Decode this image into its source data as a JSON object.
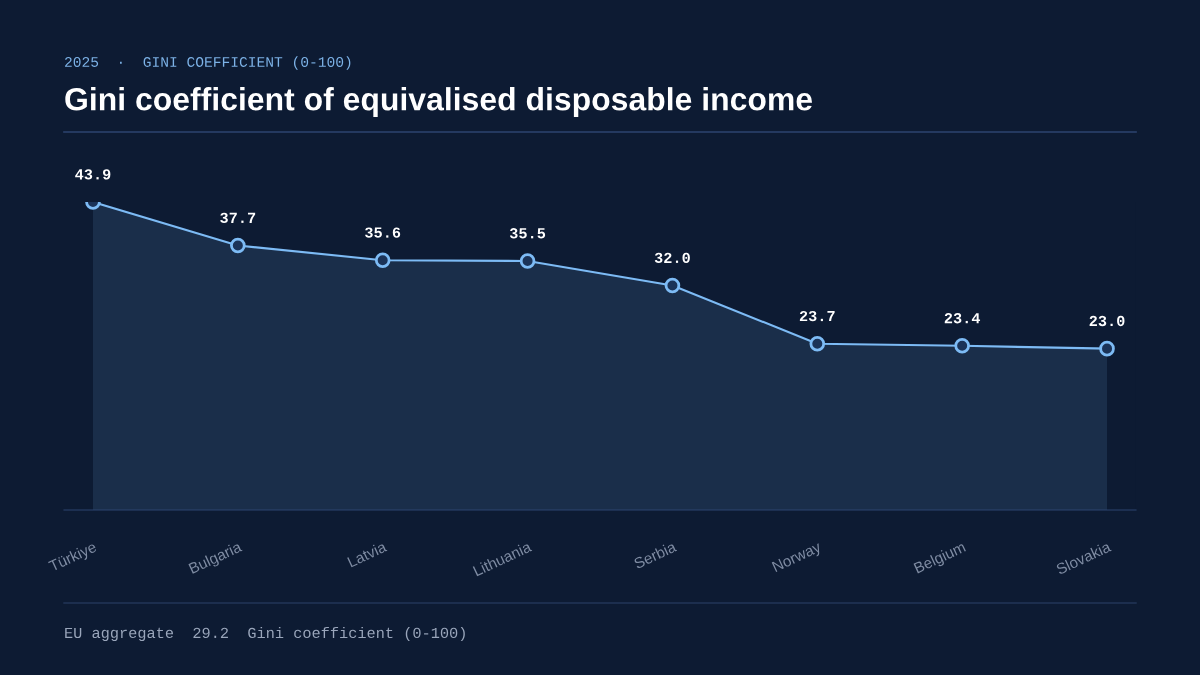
{
  "chart_data": {
    "type": "area",
    "subtitle": "2025  ·  GINI COEFFICIENT (0-100)",
    "title": "Gini coefficient of equivalised disposable income",
    "categories": [
      "Türkiye",
      "Bulgaria",
      "Latvia",
      "Lithuania",
      "Serbia",
      "Norway",
      "Belgium",
      "Slovakia"
    ],
    "series": [
      {
        "color": "#7dbbf5",
        "values": [
          43.9,
          37.7,
          35.6,
          35.5,
          32.0,
          23.7,
          23.4,
          23.0
        ],
        "value_labels": [
          "43.9",
          "37.7",
          "35.6",
          "35.5",
          "32.0",
          "23.7",
          "23.4",
          "23.0"
        ]
      }
    ],
    "tick_labels": "x",
    "marker": "circle",
    "annotations": [
      "EU aggregate  29.2  Gini coefficient (0-100)"
    ]
  }
}
